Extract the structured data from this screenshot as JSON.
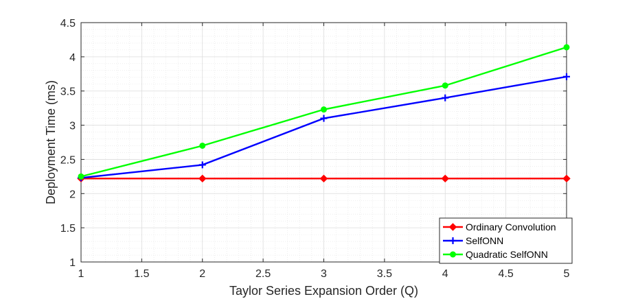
{
  "chart_data": {
    "type": "line",
    "xlabel": "Taylor Series Expansion Order (Q)",
    "ylabel": "Deployment Time (ms)",
    "xlim": [
      1,
      5
    ],
    "ylim": [
      1,
      4.5
    ],
    "x_ticks": [
      "1",
      "1.5",
      "2",
      "2.5",
      "3",
      "3.5",
      "4",
      "4.5",
      "5"
    ],
    "y_ticks": [
      "1",
      "1.5",
      "2",
      "2.5",
      "3",
      "3.5",
      "4",
      "4.5"
    ],
    "grid": true,
    "minor_grid": true,
    "legend_position": "bottom-right",
    "x": [
      1,
      2,
      3,
      4,
      5
    ],
    "series": [
      {
        "name": "Ordinary Convolution",
        "values": [
          2.22,
          2.22,
          2.22,
          2.22,
          2.22
        ],
        "color": "#ff0000",
        "marker": "diamond"
      },
      {
        "name": "SelfONN",
        "values": [
          2.23,
          2.42,
          3.1,
          3.4,
          3.71
        ],
        "color": "#0000ff",
        "marker": "plus"
      },
      {
        "name": "Quadratic SelfONN",
        "values": [
          2.25,
          2.7,
          3.23,
          3.58,
          4.14
        ],
        "color": "#00ff00",
        "marker": "circle"
      }
    ]
  }
}
